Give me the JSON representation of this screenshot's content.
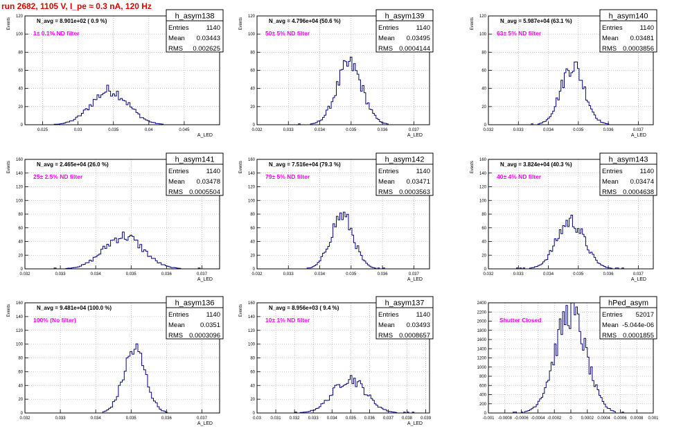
{
  "canvas_title": "run 2682,  1105 V, I_pe ≈ 0.3 nA, 120 Hz",
  "colors": {
    "title": "#dd0000",
    "histogram": "#000080",
    "label": "#ff00ff",
    "frame": "#000000",
    "grid": "#999999"
  },
  "chart_data": [
    {
      "type": "bar",
      "name": "h_asym138",
      "ylabel": "Events",
      "xlabel": "A_LED",
      "stats": {
        "Entries": "1140",
        "Mean": "0.03443",
        "RMS": "0.002625"
      },
      "navg": "N_avg = 8.901e+02 ( 0.9 %)",
      "label": "1± 0.1% ND filter",
      "xlim": [
        0.0225,
        0.05
      ],
      "ylim": [
        0,
        120
      ],
      "xticks": [
        "0.025",
        "0.03",
        "0.035",
        "0.04",
        "0.045"
      ],
      "xtick_values": [
        0.025,
        0.03,
        0.035,
        0.04,
        0.045
      ],
      "yticks": [
        "0",
        "20",
        "40",
        "60",
        "80",
        "100",
        "120"
      ],
      "ytick_values": [
        0,
        20,
        40,
        60,
        80,
        100,
        120
      ],
      "peak": {
        "center": 0.0345,
        "width": 0.0026,
        "height": 38
      }
    },
    {
      "type": "bar",
      "name": "h_asym139",
      "ylabel": "Events",
      "xlabel": "A_LED",
      "stats": {
        "Entries": "1140",
        "Mean": "0.03495",
        "RMS": "0.0004144"
      },
      "navg": "N_avg = 4.796e+04 (50.6 %)",
      "label": "50± 5% ND filter",
      "xlim": [
        0.032,
        0.0375
      ],
      "ylim": [
        0,
        120
      ],
      "xticks": [
        "0.032",
        "0.033",
        "0.034",
        "0.035",
        "0.036",
        "0.037"
      ],
      "xtick_values": [
        0.032,
        0.033,
        0.034,
        0.035,
        0.036,
        0.037
      ],
      "yticks": [
        "0",
        "20",
        "40",
        "60",
        "80",
        "100",
        "120"
      ],
      "ytick_values": [
        0,
        20,
        40,
        60,
        80,
        100,
        120
      ],
      "peak": {
        "center": 0.03495,
        "width": 0.00041,
        "height": 66
      }
    },
    {
      "type": "bar",
      "name": "h_asym140",
      "ylabel": "Events",
      "xlabel": "A_LED",
      "stats": {
        "Entries": "1140",
        "Mean": "0.03481",
        "RMS": "0.0003856"
      },
      "navg": "N_avg = 5.987e+04 (63.1 %)",
      "label": "63± 5% ND filter",
      "xlim": [
        0.032,
        0.0375
      ],
      "ylim": [
        0,
        120
      ],
      "xticks": [
        "0.032",
        "0.033",
        "0.034",
        "0.035",
        "0.036",
        "0.037"
      ],
      "xtick_values": [
        0.032,
        0.033,
        0.034,
        0.035,
        0.036,
        0.037
      ],
      "yticks": [
        "0",
        "20",
        "40",
        "60",
        "80",
        "100",
        "120"
      ],
      "ytick_values": [
        0,
        20,
        40,
        60,
        80,
        100,
        120
      ],
      "peak": {
        "center": 0.03481,
        "width": 0.00039,
        "height": 66
      }
    },
    {
      "type": "bar",
      "name": "h_asym141",
      "ylabel": "Events",
      "xlabel": "A_LED",
      "stats": {
        "Entries": "1140",
        "Mean": "0.03478",
        "RMS": "0.0005504"
      },
      "navg": "N_avg = 2.465e+04 (26.0 %)",
      "label": "25± 2.5% ND filter",
      "xlim": [
        0.032,
        0.0375
      ],
      "ylim": [
        0,
        160
      ],
      "xticks": [
        "0.032",
        "0.033",
        "0.034",
        "0.035",
        "0.036",
        "0.037"
      ],
      "xtick_values": [
        0.032,
        0.033,
        0.034,
        0.035,
        0.036,
        0.037
      ],
      "yticks": [
        "0",
        "20",
        "40",
        "60",
        "80",
        "100",
        "120",
        "140",
        "160"
      ],
      "ytick_values": [
        0,
        20,
        40,
        60,
        80,
        100,
        120,
        140,
        160
      ],
      "peak": {
        "center": 0.03478,
        "width": 0.00055,
        "height": 48
      }
    },
    {
      "type": "bar",
      "name": "h_asym142",
      "ylabel": "Events",
      "xlabel": "A_LED",
      "stats": {
        "Entries": "1140",
        "Mean": "0.03471",
        "RMS": "0.0003563"
      },
      "navg": "N_avg = 7.516e+04 (79.3 %)",
      "label": "79± 5% ND filter",
      "xlim": [
        0.032,
        0.0375
      ],
      "ylim": [
        0,
        160
      ],
      "xticks": [
        "0.032",
        "0.033",
        "0.034",
        "0.035",
        "0.036",
        "0.037"
      ],
      "xtick_values": [
        0.032,
        0.033,
        0.034,
        0.035,
        0.036,
        0.037
      ],
      "yticks": [
        "0",
        "20",
        "40",
        "60",
        "80",
        "100",
        "120",
        "140",
        "160"
      ],
      "ytick_values": [
        0,
        20,
        40,
        60,
        80,
        100,
        120,
        140,
        160
      ],
      "peak": {
        "center": 0.03471,
        "width": 0.00036,
        "height": 78
      }
    },
    {
      "type": "bar",
      "name": "h_asym143",
      "ylabel": "Events",
      "xlabel": "A_LED",
      "stats": {
        "Entries": "1140",
        "Mean": "0.03474",
        "RMS": "0.0004638"
      },
      "navg": "N_avg = 3.824e+04 (40.3 %)",
      "label": "40± 4% ND filter",
      "xlim": [
        0.032,
        0.0375
      ],
      "ylim": [
        0,
        160
      ],
      "xticks": [
        "0.032",
        "0.033",
        "0.034",
        "0.035",
        "0.036",
        "0.037"
      ],
      "xtick_values": [
        0.032,
        0.033,
        0.034,
        0.035,
        0.036,
        0.037
      ],
      "yticks": [
        "0",
        "20",
        "40",
        "60",
        "80",
        "100",
        "120",
        "140",
        "160"
      ],
      "ytick_values": [
        0,
        20,
        40,
        60,
        80,
        100,
        120,
        140,
        160
      ],
      "peak": {
        "center": 0.03474,
        "width": 0.00046,
        "height": 70
      }
    },
    {
      "type": "bar",
      "name": "h_asym136",
      "ylabel": "Events",
      "xlabel": "A_LED",
      "stats": {
        "Entries": "1140",
        "Mean": "0.0351",
        "RMS": "0.0003096"
      },
      "navg": "N_avg = 9.481e+04 (100.0 %)",
      "label": "100% (No filter)",
      "xlim": [
        0.032,
        0.0375
      ],
      "ylim": [
        0,
        160
      ],
      "xticks": [
        "0.032",
        "0.033",
        "0.034",
        "0.035",
        "0.036",
        "0.037"
      ],
      "xtick_values": [
        0.032,
        0.033,
        0.034,
        0.035,
        0.036,
        0.037
      ],
      "yticks": [
        "0",
        "20",
        "40",
        "60",
        "80",
        "100",
        "120",
        "140",
        "160"
      ],
      "ytick_values": [
        0,
        20,
        40,
        60,
        80,
        100,
        120,
        140,
        160
      ],
      "peak": {
        "center": 0.0351,
        "width": 0.00031,
        "height": 92
      }
    },
    {
      "type": "bar",
      "name": "h_asym137",
      "ylabel": "Events",
      "xlabel": "A_LED",
      "stats": {
        "Entries": "1140",
        "Mean": "0.03493",
        "RMS": "0.0008657"
      },
      "navg": "N_avg = 8.956e+03 ( 9.4 %)",
      "label": "10± 1% ND filter",
      "xlim": [
        0.03,
        0.0392
      ],
      "ylim": [
        0,
        160
      ],
      "xticks": [
        "0.03",
        "0.031",
        "0.032",
        "0.033",
        "0.034",
        "0.035",
        "0.036",
        "0.037",
        "0.038",
        "0.039"
      ],
      "xtick_values": [
        0.03,
        0.031,
        0.032,
        0.033,
        0.034,
        0.035,
        0.036,
        0.037,
        0.038,
        0.039
      ],
      "yticks": [
        "0",
        "20",
        "40",
        "60",
        "80",
        "100",
        "120",
        "140",
        "160"
      ],
      "ytick_values": [
        0,
        20,
        40,
        60,
        80,
        100,
        120,
        140,
        160
      ],
      "peak": {
        "center": 0.03493,
        "width": 0.00087,
        "height": 50
      }
    },
    {
      "type": "bar",
      "name": "hPed_asym",
      "ylabel": "",
      "xlabel": "",
      "stats": {
        "Entries": "52017",
        "Mean": "-5.044e-06",
        "RMS": "0.0001855"
      },
      "navg": "",
      "label": "Shutter Closed",
      "xlim": [
        -0.001,
        0.001
      ],
      "ylim": [
        0,
        2400
      ],
      "xticks": [
        "-0.001",
        "-0.0008",
        "-0.0006",
        "-0.0004",
        "-0.0002",
        "0",
        "0.0002",
        "0.0004",
        "0.0006",
        "0.0008",
        "0.001"
      ],
      "xtick_values": [
        -0.001,
        -0.0008,
        -0.0006,
        -0.0004,
        -0.0002,
        0,
        0.0002,
        0.0004,
        0.0006,
        0.0008,
        0.001
      ],
      "yticks": [
        "0",
        "200",
        "400",
        "600",
        "800",
        "1000",
        "1200",
        "1400",
        "1600",
        "1800",
        "2000",
        "2200",
        "2400"
      ],
      "ytick_values": [
        0,
        200,
        400,
        600,
        800,
        1000,
        1200,
        1400,
        1600,
        1800,
        2000,
        2200,
        2400
      ],
      "peak": {
        "center": -5e-06,
        "width": 0.000186,
        "height": 2200
      }
    }
  ]
}
